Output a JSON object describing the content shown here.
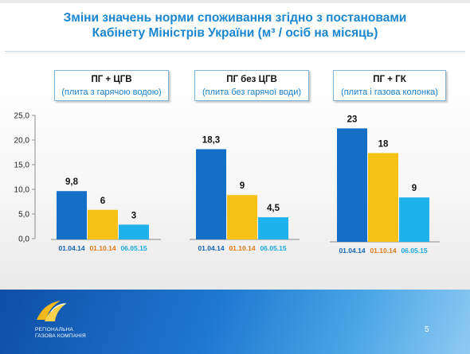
{
  "slide": {
    "title_line1": "Зміни значень норми споживання згідно з постановами",
    "title_line2": "Кабінету Міністрів України (м³ / осіб на місяць)",
    "page_number": "5"
  },
  "logo": {
    "line1": "РЕГІОНАЛЬНА",
    "line2": "ГАЗОВА КОМПАНІЯ"
  },
  "categories": [
    {
      "title": "ПГ + ЦГВ",
      "subtitle": "(плита з гарячою водою)"
    },
    {
      "title": "ПГ без ЦГВ",
      "subtitle": "(плита без гарячої води)"
    },
    {
      "title": "ПГ + ГК",
      "subtitle": "(плита і газова колонка)"
    }
  ],
  "chart_data": {
    "type": "bar",
    "title": "",
    "xlabel": "",
    "ylabel": "",
    "ylim": [
      0,
      25
    ],
    "yticks": [
      "0,0",
      "5,0",
      "10,0",
      "15,0",
      "20,0",
      "25,0"
    ],
    "grid": false,
    "colors": [
      "#1370c6",
      "#f7c216",
      "#1fb2ec"
    ],
    "date_label_colors": [
      "#1566b8",
      "#e07b18",
      "#1ba9e4"
    ],
    "groups": [
      {
        "name": "ПГ + ЦГВ",
        "dates": [
          "01.04.14",
          "01.10.14",
          "06.05.15"
        ],
        "values": [
          9.8,
          6,
          3
        ],
        "labels": [
          "9,8",
          "6",
          "3"
        ]
      },
      {
        "name": "ПГ без ЦГВ",
        "dates": [
          "01.04.14",
          "01.10.14",
          "06.05.15"
        ],
        "values": [
          18.3,
          9,
          4.5
        ],
        "labels": [
          "18,3",
          "9",
          "4,5"
        ]
      },
      {
        "name": "ПГ + ГК",
        "dates": [
          "01.04.14",
          "01.10.14",
          "06.05.15"
        ],
        "values": [
          23,
          18,
          9
        ],
        "labels": [
          "23",
          "18",
          "9"
        ]
      }
    ]
  }
}
